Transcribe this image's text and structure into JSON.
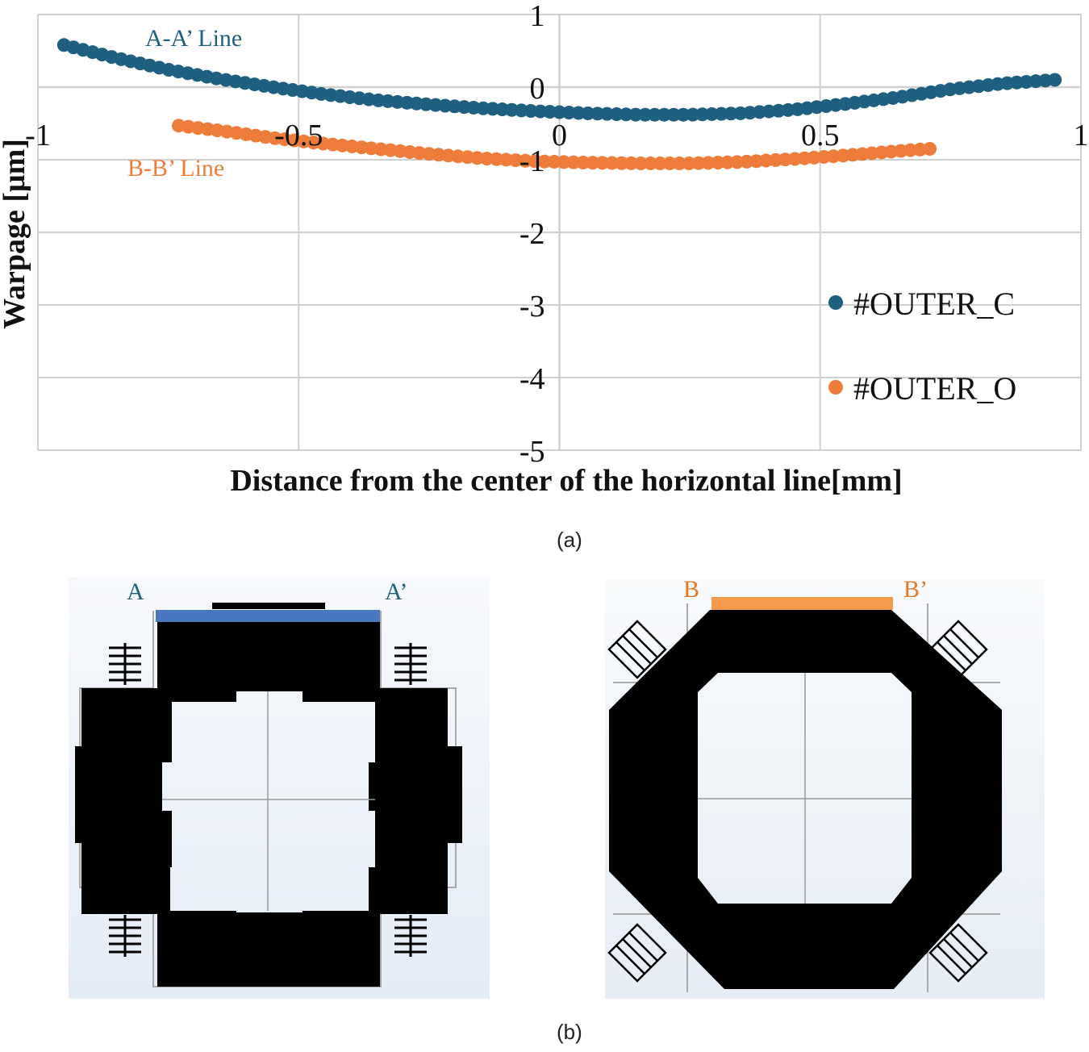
{
  "chart_data": {
    "type": "scatter",
    "xlabel": "Distance from the center of the horizontal line[mm]",
    "ylabel": "Warpage [μm]",
    "xlim": [
      -1,
      1
    ],
    "ylim": [
      -5,
      1
    ],
    "xticks": [
      "-1",
      "-0.5",
      "0",
      "0.5",
      "1"
    ],
    "yticks": [
      "1",
      "0",
      "-1",
      "-2",
      "-3",
      "-4",
      "-5"
    ],
    "grid": true,
    "legend_position": "bottom-right",
    "colors": {
      "outer_c": "#1f5f80",
      "outer_o": "#ee7d3b"
    },
    "series": [
      {
        "name": "#OUTER_C",
        "line_label": "A-A’ Line",
        "x": [
          -0.95,
          -0.85,
          -0.75,
          -0.65,
          -0.55,
          -0.45,
          -0.35,
          -0.25,
          -0.15,
          -0.05,
          0.05,
          0.15,
          0.25,
          0.35,
          0.45,
          0.55,
          0.65,
          0.75,
          0.85,
          0.95
        ],
        "y": [
          0.58,
          0.4,
          0.24,
          0.11,
          0.0,
          -0.1,
          -0.18,
          -0.24,
          -0.29,
          -0.33,
          -0.36,
          -0.38,
          -0.38,
          -0.36,
          -0.31,
          -0.23,
          -0.14,
          -0.03,
          0.05,
          0.1
        ]
      },
      {
        "name": "#OUTER_O",
        "line_label": "B-B’ Line",
        "x": [
          -0.73,
          -0.65,
          -0.55,
          -0.45,
          -0.35,
          -0.25,
          -0.15,
          -0.05,
          0.05,
          0.15,
          0.25,
          0.35,
          0.45,
          0.55,
          0.65,
          0.71
        ],
        "y": [
          -0.53,
          -0.6,
          -0.7,
          -0.78,
          -0.85,
          -0.92,
          -0.98,
          -1.02,
          -1.04,
          -1.05,
          -1.05,
          -1.03,
          -0.99,
          -0.94,
          -0.88,
          -0.85
        ]
      }
    ]
  },
  "captions": {
    "a": "(a)",
    "b": "(b)"
  },
  "panels": {
    "left": {
      "label_start": "A",
      "label_end": "A’",
      "line_color": "#4a78c0",
      "label_color": "#1f5f80"
    },
    "right": {
      "label_start": "B",
      "label_end": "B’",
      "line_color": "#f39a4b",
      "label_color": "#e07a28"
    }
  }
}
